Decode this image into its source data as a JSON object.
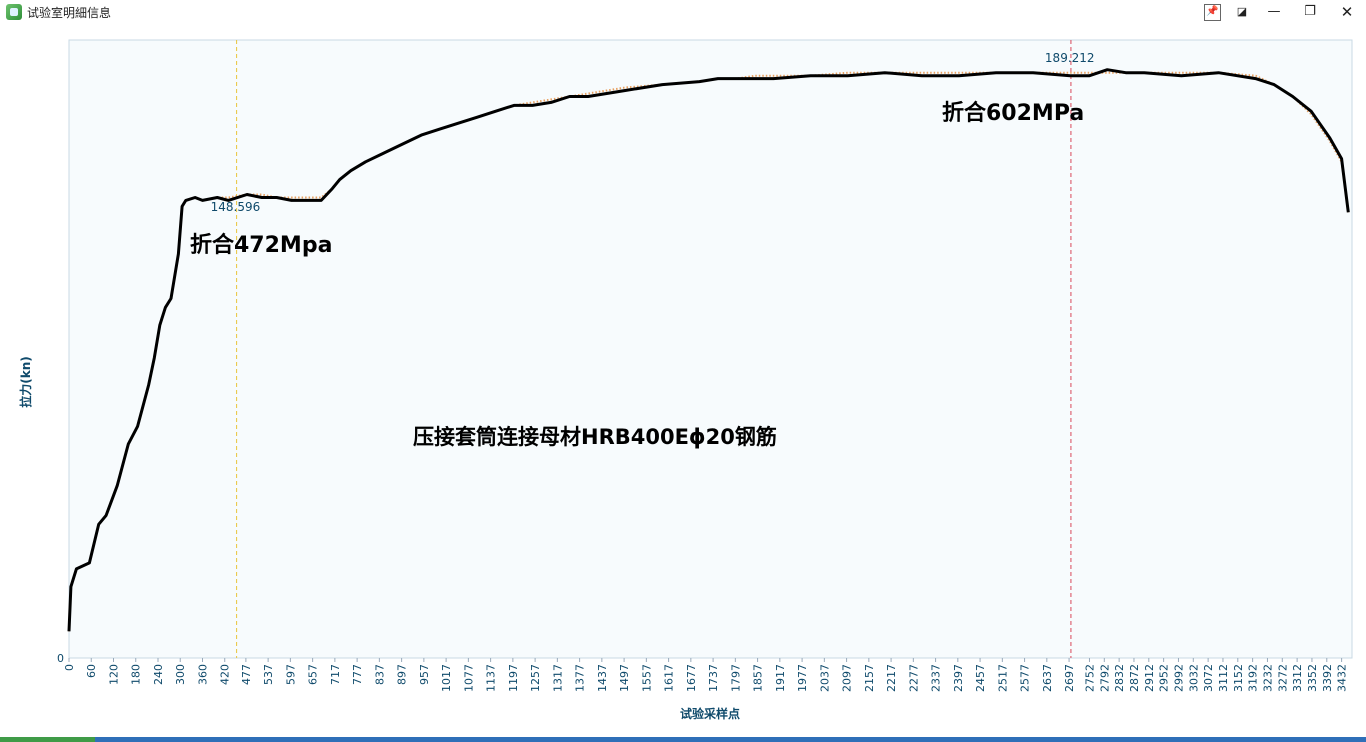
{
  "window": {
    "title": "试验室明細信息",
    "buttons": {
      "pin": "📌",
      "float": "◪",
      "minimize": "—",
      "maximize": "❐",
      "close": "✕"
    }
  },
  "chart_data": {
    "type": "line",
    "title": "压接套筒连接母材HRB400Eϕ20钢筋",
    "xlabel": "试验采样点",
    "ylabel": "拉力(kn)",
    "y_tick_labels": [
      "0"
    ],
    "xlim": [
      0,
      3460
    ],
    "ylim": [
      0,
      208
    ],
    "x_ticks": [
      0,
      60,
      120,
      180,
      240,
      300,
      360,
      420,
      477,
      537,
      597,
      657,
      717,
      777,
      837,
      897,
      957,
      1017,
      1077,
      1137,
      1197,
      1257,
      1317,
      1377,
      1437,
      1497,
      1557,
      1617,
      1677,
      1737,
      1797,
      1857,
      1917,
      1977,
      2037,
      2097,
      2157,
      2217,
      2277,
      2337,
      2397,
      2457,
      2517,
      2577,
      2637,
      2697,
      2752,
      2792,
      2832,
      2872,
      2912,
      2952,
      2992,
      3032,
      3072,
      3112,
      3152,
      3192,
      3232,
      3272,
      3312,
      3352,
      3392,
      3432
    ],
    "x_tick_labels": [
      "0",
      "60",
      "120",
      "180",
      "240",
      "300",
      "360",
      "420",
      "477",
      "537",
      "597",
      "657",
      "717",
      "777",
      "837",
      "897",
      "957",
      "1017",
      "1077",
      "1137",
      "1197",
      "1257",
      "1317",
      "1377",
      "1437",
      "1497",
      "1557",
      "1617",
      "1677",
      "1737",
      "1797",
      "1857",
      "1917",
      "1977",
      "2037",
      "2097",
      "2157",
      "2217",
      "2277",
      "2337",
      "2397",
      "2457",
      "2517",
      "2577",
      "2637",
      "2697",
      "2752",
      "2792",
      "2832",
      "2872",
      "2912",
      "2952",
      "2992",
      "3032",
      "3072",
      "3112",
      "3152",
      "3192",
      "3232",
      "3272",
      "3312",
      "3352",
      "3392",
      "3432"
    ],
    "series": [
      {
        "color": "#000000",
        "x": [
          0,
          5,
          20,
          55,
          80,
          100,
          130,
          160,
          185,
          215,
          230,
          245,
          260,
          275,
          295,
          305,
          315,
          340,
          360,
          400,
          430,
          480,
          520,
          560,
          600,
          640,
          680,
          710,
          730,
          760,
          800,
          850,
          900,
          950,
          1000,
          1050,
          1100,
          1150,
          1200,
          1250,
          1300,
          1350,
          1400,
          1450,
          1500,
          1600,
          1700,
          1750,
          1800,
          1850,
          1900,
          2000,
          2100,
          2200,
          2300,
          2400,
          2500,
          2600,
          2700,
          2752,
          2800,
          2850,
          2900,
          3000,
          3100,
          3200,
          3250,
          3300,
          3350,
          3400,
          3432,
          3450
        ],
        "y": [
          9,
          24,
          30,
          32,
          45,
          48,
          58,
          72,
          78,
          92,
          101,
          112,
          118,
          121,
          136,
          152,
          154,
          155,
          154,
          155,
          154,
          156,
          155,
          155,
          154,
          154,
          154,
          158,
          161,
          164,
          167,
          170,
          173,
          176,
          178,
          180,
          182,
          184,
          186,
          186,
          187,
          189,
          189,
          190,
          191,
          193,
          194,
          195,
          195,
          195,
          195,
          196,
          196,
          197,
          196,
          196,
          197,
          197,
          196,
          196,
          198,
          197,
          197,
          196,
          197,
          195,
          193,
          189,
          184,
          175,
          168,
          150
        ],
        "annotation": {
          "label": "折合472Mpa"
        }
      },
      {
        "color": "#e8a060",
        "x": [
          0,
          5,
          20,
          55,
          80,
          100,
          130,
          160,
          185,
          215,
          230,
          245,
          260,
          275,
          295,
          305,
          315,
          340,
          360,
          400,
          430,
          480,
          520,
          560,
          600,
          640,
          680,
          710,
          730,
          760,
          800,
          850,
          900,
          950,
          1000,
          1050,
          1100,
          1150,
          1200,
          1250,
          1300,
          1350,
          1400,
          1450,
          1500,
          1600,
          1700,
          1750,
          1800,
          1850,
          1900,
          2000,
          2100,
          2200,
          2300,
          2400,
          2500,
          2600,
          2700,
          2752,
          2800,
          2850,
          2900,
          3000,
          3100,
          3200,
          3250,
          3300,
          3350,
          3400,
          3432,
          3450
        ],
        "y": [
          9,
          24,
          30,
          32,
          45,
          48,
          58,
          72,
          78,
          92,
          101,
          112,
          118,
          121,
          136,
          152,
          154,
          155,
          154,
          155,
          155,
          156,
          156,
          155,
          155,
          155,
          155,
          158,
          161,
          164,
          167,
          170,
          173,
          176,
          178,
          180,
          182,
          184,
          186,
          187,
          188,
          189,
          190,
          191,
          192,
          193,
          194,
          195,
          195,
          196,
          196,
          196,
          197,
          197,
          197,
          197,
          197,
          197,
          197,
          197,
          197,
          197,
          197,
          197,
          197,
          196,
          193,
          189,
          183,
          174,
          167,
          150
        ],
        "annotation": {
          "label": "折合602MPa"
        }
      }
    ],
    "markers": [
      {
        "x": 452,
        "value_label": "148.596",
        "color": "#e9c43c"
      },
      {
        "x": 2702,
        "value_label": "189.212",
        "color": "#d9485a"
      }
    ],
    "grid": false
  },
  "colors": {
    "plot_bg": "#f7fbfd",
    "axis_text": "#0f4a6b",
    "window_bg": "#ffffff"
  }
}
